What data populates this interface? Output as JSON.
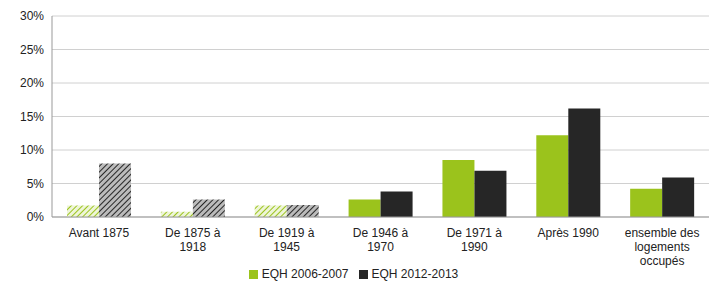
{
  "chart_data": {
    "type": "bar",
    "categories": [
      "Avant 1875",
      "De 1875 à 1918",
      "De 1919 à 1945",
      "De 1946 à 1970",
      "De 1971 à 1990",
      "Après 1990",
      "ensemble des logements occupés"
    ],
    "series": [
      {
        "name": "EQH 2006-2007",
        "color": "#9bc31c",
        "values": [
          1.7,
          0.8,
          1.7,
          2.6,
          8.5,
          12.2,
          4.2
        ]
      },
      {
        "name": "EQH 2012-2013",
        "color": "#262626",
        "values": [
          8.0,
          2.6,
          1.8,
          3.8,
          6.9,
          16.2,
          5.9
        ]
      }
    ],
    "ylim": [
      0,
      30
    ],
    "yticks": [
      {
        "value": 0,
        "label": "0%"
      },
      {
        "value": 5,
        "label": "5%"
      },
      {
        "value": 10,
        "label": "10%"
      },
      {
        "value": 15,
        "label": "15%"
      },
      {
        "value": 20,
        "label": "20%"
      },
      {
        "value": 25,
        "label": "25%"
      },
      {
        "value": 30,
        "label": "30%"
      }
    ],
    "grid": true,
    "legend": "bottom"
  }
}
